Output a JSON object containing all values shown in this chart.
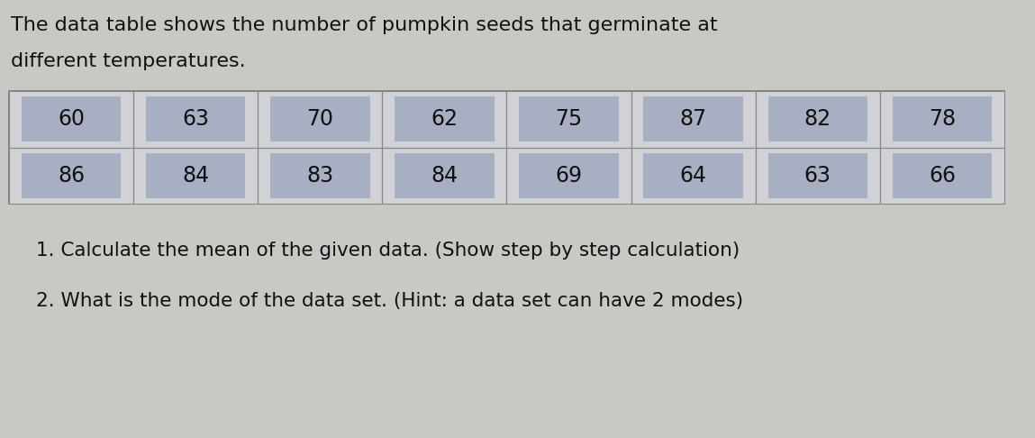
{
  "title_line1": "The data table shows the number of pumpkin seeds that germinate at",
  "title_line2": "different temperatures.",
  "row1": [
    60,
    63,
    70,
    62,
    75,
    87,
    82,
    78
  ],
  "row2": [
    86,
    84,
    83,
    84,
    69,
    64,
    63,
    66
  ],
  "cell_highlight_color": "#9da4be",
  "cell_bg_color": "#d6d8df",
  "outer_bg_color": "#c8c9c5",
  "text_color": "#111111",
  "question1": "1. Calculate the mean of the given data. (Show step by step calculation)",
  "question2": "2. What is the mode of the data set. (Hint: a data set can have 2 modes)",
  "title_fontsize": 16,
  "cell_fontsize": 17,
  "question_fontsize": 15.5
}
